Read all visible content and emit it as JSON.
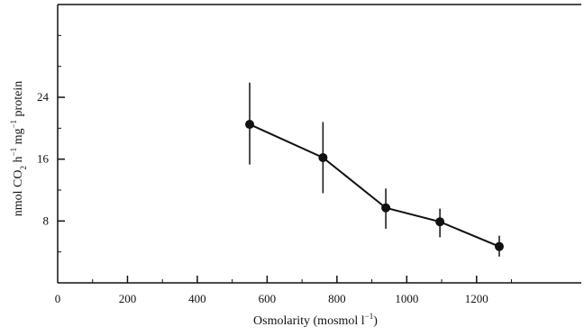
{
  "chart_data": {
    "type": "line",
    "title": "",
    "xlabel": {
      "prefix": "Osmolarity (mosmol l",
      "sup": "−1",
      "suffix": ")"
    },
    "ylabel": {
      "p1": "nmol CO",
      "sub1": "2",
      "p2": " h",
      "sup1": "−1",
      "p3": " mg",
      "sup2": "−1",
      "p4": " protein"
    },
    "xlim": [
      0,
      1500
    ],
    "ylim": [
      0,
      36
    ],
    "x_ticks": [
      0,
      200,
      400,
      600,
      800,
      1000,
      1200
    ],
    "x_tick_labels": [
      "0",
      "200",
      "400",
      "600",
      "800",
      "1000",
      "1200"
    ],
    "y_ticks": [
      8,
      16,
      24
    ],
    "y_tick_labels": [
      "8",
      "16",
      "24"
    ],
    "x_minor_ticks": [
      100,
      300,
      500,
      700,
      900,
      1100,
      1300
    ],
    "y_minor_ticks": [
      4,
      12,
      20,
      28,
      32
    ],
    "grid": false,
    "series": [
      {
        "x": [
          550,
          760,
          940,
          1095,
          1265
        ],
        "y": [
          20.5,
          16.2,
          9.7,
          7.9,
          4.7
        ],
        "error_low": [
          15.3,
          11.6,
          7.0,
          5.9,
          3.4
        ],
        "error_high": [
          25.9,
          20.8,
          12.2,
          9.6,
          6.1
        ],
        "color": "#111111"
      }
    ]
  }
}
